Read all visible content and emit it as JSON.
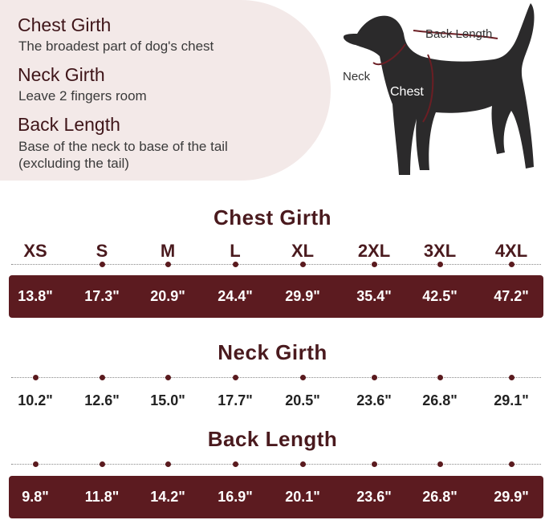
{
  "legend": [
    {
      "title": "Chest Girth",
      "desc": "The broadest part of dog's chest"
    },
    {
      "title": "Neck Girth",
      "desc": "Leave 2 fingers room"
    },
    {
      "title": "Back Length",
      "desc": "Base of the neck to base of the tail",
      "desc2": "(excluding the tail)"
    }
  ],
  "dog_labels": {
    "back": "Back Length",
    "neck": "Neck",
    "chest": "Chest"
  },
  "colors": {
    "accent": "#5c1b20",
    "panel": "#f3e9e8"
  },
  "sizes": [
    "XS",
    "S",
    "M",
    "L",
    "XL",
    "2XL",
    "3XL",
    "4XL"
  ],
  "sections": {
    "chest": {
      "title": "Chest Girth",
      "values": [
        "13.8\"",
        "17.3\"",
        "20.9\"",
        "24.4\"",
        "29.9\"",
        "35.4\"",
        "42.5\"",
        "47.2\""
      ]
    },
    "neck": {
      "title": "Neck Girth",
      "values": [
        "10.2\"",
        "12.6\"",
        "15.0\"",
        "17.7\"",
        "20.5\"",
        "23.6\"",
        "26.8\"",
        "29.1\""
      ]
    },
    "back": {
      "title": "Back Length",
      "values": [
        "9.8\"",
        "11.8\"",
        "14.2\"",
        "16.9\"",
        "20.1\"",
        "23.6\"",
        "26.8\"",
        "29.9\""
      ]
    }
  }
}
